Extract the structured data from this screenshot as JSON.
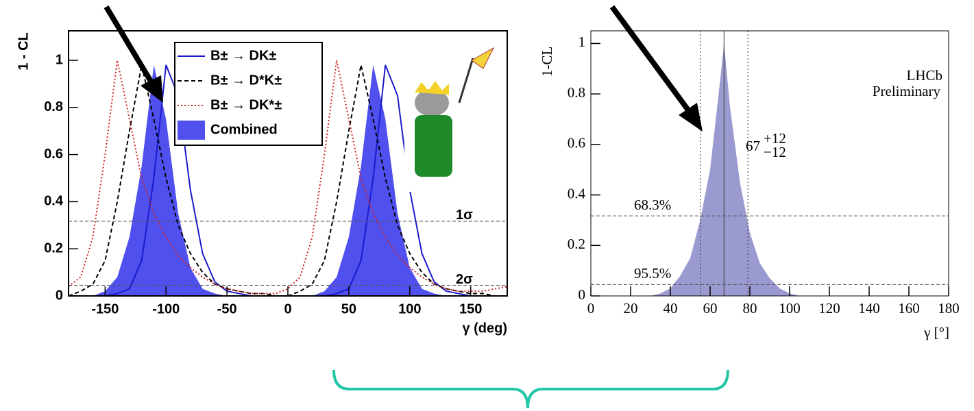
{
  "chart_data": [
    {
      "type": "line",
      "ylabel": "1 - CL",
      "xlabel": "γ (deg)",
      "xlim": [
        -180,
        180
      ],
      "xticks": [
        -150,
        -100,
        -50,
        0,
        50,
        100,
        150
      ],
      "ylim": [
        0,
        1.125
      ],
      "yticks": [
        0,
        0.2,
        0.4,
        0.6,
        0.8,
        1
      ],
      "x": [
        -180,
        -170,
        -160,
        -150,
        -140,
        -130,
        -120,
        -110,
        -100,
        -90,
        -80,
        -70,
        -60,
        -50,
        -40,
        -30,
        -20,
        -10,
        0,
        10,
        20,
        30,
        40,
        50,
        60,
        70,
        80,
        90,
        100,
        110,
        120,
        130,
        140,
        150,
        160,
        170,
        180
      ],
      "series": [
        {
          "name": "B± → DK±",
          "color": "#1a1acc",
          "dash": "solid",
          "values": [
            0,
            0,
            0,
            0,
            0.01,
            0.03,
            0.15,
            0.5,
            0.98,
            0.85,
            0.45,
            0.18,
            0.06,
            0.02,
            0.01,
            0,
            0,
            0,
            0,
            0,
            0,
            0,
            0.01,
            0.03,
            0.15,
            0.5,
            0.98,
            0.85,
            0.45,
            0.18,
            0.06,
            0.02,
            0.01,
            0,
            0,
            0,
            0
          ]
        },
        {
          "name": "B± → D*K±",
          "color": "#000000",
          "dash": "dashed",
          "values": [
            0,
            0.02,
            0.05,
            0.15,
            0.4,
            0.7,
            0.98,
            0.75,
            0.5,
            0.3,
            0.18,
            0.1,
            0.05,
            0.03,
            0.02,
            0.01,
            0.01,
            0,
            0,
            0.02,
            0.05,
            0.15,
            0.4,
            0.7,
            0.98,
            0.75,
            0.5,
            0.3,
            0.18,
            0.1,
            0.05,
            0.03,
            0.02,
            0.01,
            0.01,
            0,
            0
          ]
        },
        {
          "name": "B± → DK*±",
          "color": "#d42020",
          "dash": "dotted",
          "values": [
            0.04,
            0.08,
            0.25,
            0.6,
            1.0,
            0.75,
            0.5,
            0.35,
            0.25,
            0.17,
            0.12,
            0.08,
            0.05,
            0.03,
            0.02,
            0.01,
            0.01,
            0.01,
            0.03,
            0.08,
            0.25,
            0.6,
            1.0,
            0.75,
            0.5,
            0.35,
            0.25,
            0.17,
            0.12,
            0.08,
            0.05,
            0.03,
            0.02,
            0.02,
            0.02,
            0.03,
            0.04
          ]
        },
        {
          "name": "Combined",
          "color": "#5050ee",
          "dash": "area",
          "values": [
            0,
            0,
            0,
            0.02,
            0.08,
            0.25,
            0.55,
            0.98,
            0.75,
            0.35,
            0.12,
            0.03,
            0.01,
            0,
            0,
            0,
            0,
            0,
            0,
            0,
            0,
            0.02,
            0.08,
            0.25,
            0.55,
            0.98,
            0.75,
            0.35,
            0.12,
            0.03,
            0.01,
            0,
            0,
            0,
            0,
            0,
            0
          ]
        }
      ],
      "hlines": [
        {
          "value": 0.317,
          "label": "1σ"
        },
        {
          "value": 0.045,
          "label": "2σ"
        }
      ],
      "legend": "top-left"
    },
    {
      "type": "area",
      "ylabel": "1-CL",
      "xlabel": "γ [°]",
      "xlim": [
        0,
        180
      ],
      "xticks": [
        0,
        20,
        40,
        60,
        80,
        100,
        120,
        140,
        160,
        180
      ],
      "ylim": [
        0,
        1.05
      ],
      "yticks": [
        0,
        0.2,
        0.4,
        0.6,
        0.8,
        1
      ],
      "x": [
        30,
        35,
        40,
        45,
        50,
        55,
        60,
        65,
        67,
        70,
        75,
        80,
        85,
        90,
        95,
        100,
        105
      ],
      "values": [
        0,
        0.01,
        0.03,
        0.08,
        0.15,
        0.3,
        0.5,
        0.85,
        1.0,
        0.75,
        0.45,
        0.25,
        0.13,
        0.07,
        0.03,
        0.01,
        0
      ],
      "color": "#9a9ad0",
      "vlines": [
        {
          "value": 55,
          "dash": "dotted"
        },
        {
          "value": 67,
          "dash": "solid"
        },
        {
          "value": 79,
          "dash": "dotted"
        }
      ],
      "hlines": [
        {
          "value": 0.317,
          "label": "68.3%"
        },
        {
          "value": 0.045,
          "label": "95.5%"
        }
      ],
      "experiment": "LHCb",
      "status": "Preliminary",
      "result": {
        "value": 67,
        "plus": "+12",
        "minus": "−12"
      }
    }
  ]
}
